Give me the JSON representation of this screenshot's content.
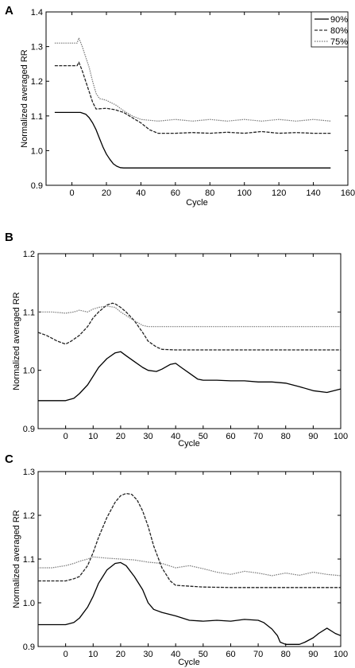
{
  "chart_data": [
    {
      "type": "line",
      "panel": "A",
      "xlabel": "Cycle",
      "ylabel": "Normalized averaged RR",
      "xlim": [
        -15,
        160
      ],
      "ylim": [
        0.9,
        1.4
      ],
      "xticks": [
        0,
        20,
        40,
        60,
        80,
        100,
        120,
        140,
        160
      ],
      "yticks": [
        0.9,
        1.0,
        1.1,
        1.2,
        1.3,
        1.4
      ],
      "yticklabels": [
        "0.9",
        "1.0",
        "1.1",
        "1.2",
        "1.3",
        "1.4"
      ],
      "legend_position": "top-right",
      "series": [
        {
          "name": "90%",
          "dash": "solid",
          "x": [
            -10,
            0,
            5,
            8,
            10,
            12,
            14,
            16,
            18,
            20,
            22,
            24,
            26,
            28,
            30,
            40,
            60,
            80,
            100,
            120,
            140,
            150
          ],
          "y": [
            1.11,
            1.11,
            1.11,
            1.105,
            1.095,
            1.08,
            1.06,
            1.035,
            1.01,
            0.99,
            0.975,
            0.962,
            0.955,
            0.951,
            0.95,
            0.95,
            0.95,
            0.95,
            0.95,
            0.95,
            0.95,
            0.95
          ]
        },
        {
          "name": "80%",
          "dash": "dash",
          "x": [
            -10,
            0,
            3,
            4,
            6,
            8,
            10,
            12,
            14,
            20,
            25,
            30,
            35,
            40,
            45,
            50,
            60,
            70,
            80,
            90,
            100,
            110,
            120,
            130,
            140,
            150
          ],
          "y": [
            1.245,
            1.245,
            1.245,
            1.255,
            1.23,
            1.2,
            1.17,
            1.14,
            1.12,
            1.122,
            1.118,
            1.11,
            1.095,
            1.08,
            1.06,
            1.05,
            1.05,
            1.052,
            1.05,
            1.053,
            1.05,
            1.055,
            1.05,
            1.052,
            1.05,
            1.05
          ]
        },
        {
          "name": "75%",
          "dash": "dot",
          "x": [
            -10,
            0,
            3,
            4,
            6,
            8,
            10,
            12,
            14,
            16,
            18,
            20,
            22,
            24,
            26,
            28,
            30,
            35,
            40,
            50,
            60,
            70,
            80,
            90,
            100,
            110,
            120,
            130,
            140,
            150
          ],
          "y": [
            1.31,
            1.31,
            1.31,
            1.325,
            1.3,
            1.27,
            1.24,
            1.2,
            1.165,
            1.15,
            1.148,
            1.145,
            1.14,
            1.135,
            1.13,
            1.122,
            1.115,
            1.1,
            1.09,
            1.085,
            1.09,
            1.085,
            1.09,
            1.085,
            1.09,
            1.085,
            1.09,
            1.085,
            1.09,
            1.085
          ]
        }
      ]
    },
    {
      "type": "line",
      "panel": "B",
      "xlabel": "Cycle",
      "ylabel": "Normalized averaged RR",
      "xlim": [
        -10,
        100
      ],
      "ylim": [
        0.9,
        1.2
      ],
      "xticks": [
        0,
        10,
        20,
        30,
        40,
        50,
        60,
        70,
        80,
        90,
        100
      ],
      "yticks": [
        0.9,
        1.0,
        1.1,
        1.2
      ],
      "yticklabels": [
        "0.9",
        "1.0",
        "1.1",
        "1.2"
      ],
      "series": [
        {
          "name": "",
          "dash": "solid",
          "x": [
            -10,
            -5,
            0,
            3,
            5,
            8,
            10,
            12,
            15,
            18,
            20,
            22,
            25,
            28,
            30,
            33,
            35,
            38,
            40,
            42,
            45,
            48,
            50,
            55,
            60,
            65,
            70,
            75,
            80,
            85,
            90,
            95,
            100
          ],
          "y": [
            0.948,
            0.948,
            0.948,
            0.952,
            0.96,
            0.975,
            0.99,
            1.005,
            1.02,
            1.03,
            1.032,
            1.025,
            1.015,
            1.005,
            1.0,
            0.998,
            1.002,
            1.01,
            1.012,
            1.005,
            0.995,
            0.985,
            0.983,
            0.983,
            0.982,
            0.982,
            0.98,
            0.98,
            0.978,
            0.972,
            0.965,
            0.962,
            0.968
          ]
        },
        {
          "name": "",
          "dash": "dash",
          "x": [
            -10,
            -7,
            -5,
            -3,
            0,
            2,
            5,
            8,
            10,
            12,
            15,
            17,
            18,
            20,
            22,
            25,
            28,
            30,
            33,
            35,
            40,
            50,
            60,
            70,
            80,
            90,
            100
          ],
          "y": [
            1.065,
            1.06,
            1.055,
            1.05,
            1.045,
            1.05,
            1.06,
            1.075,
            1.09,
            1.1,
            1.112,
            1.115,
            1.114,
            1.108,
            1.1,
            1.085,
            1.065,
            1.05,
            1.04,
            1.036,
            1.035,
            1.035,
            1.035,
            1.035,
            1.035,
            1.035,
            1.035
          ]
        },
        {
          "name": "",
          "dash": "dot",
          "x": [
            -10,
            -5,
            0,
            3,
            5,
            8,
            10,
            12,
            15,
            18,
            20,
            25,
            28,
            30,
            35,
            40,
            50,
            60,
            70,
            80,
            90,
            100
          ],
          "y": [
            1.1,
            1.1,
            1.098,
            1.1,
            1.103,
            1.1,
            1.105,
            1.108,
            1.11,
            1.108,
            1.1,
            1.085,
            1.077,
            1.075,
            1.075,
            1.075,
            1.075,
            1.075,
            1.075,
            1.075,
            1.075,
            1.075
          ]
        }
      ]
    },
    {
      "type": "line",
      "panel": "C",
      "xlabel": "Cycle",
      "ylabel": "Normalized averaged RR",
      "xlim": [
        -10,
        100
      ],
      "ylim": [
        0.9,
        1.3
      ],
      "xticks": [
        0,
        10,
        20,
        30,
        40,
        50,
        60,
        70,
        80,
        90,
        100
      ],
      "yticks": [
        0.9,
        1.0,
        1.1,
        1.2,
        1.3
      ],
      "yticklabels": [
        "0.9",
        "1.0",
        "1.1",
        "1.2",
        "1.3"
      ],
      "series": [
        {
          "name": "",
          "dash": "solid",
          "x": [
            -10,
            -5,
            0,
            3,
            5,
            8,
            10,
            12,
            15,
            18,
            20,
            22,
            25,
            28,
            30,
            32,
            35,
            40,
            45,
            50,
            55,
            60,
            65,
            70,
            72,
            75,
            77,
            78,
            80,
            85,
            87,
            90,
            92,
            95,
            98,
            100
          ],
          "y": [
            0.95,
            0.95,
            0.95,
            0.955,
            0.965,
            0.99,
            1.015,
            1.045,
            1.075,
            1.09,
            1.092,
            1.085,
            1.06,
            1.03,
            1.0,
            0.985,
            0.978,
            0.97,
            0.96,
            0.958,
            0.96,
            0.958,
            0.962,
            0.96,
            0.955,
            0.94,
            0.925,
            0.91,
            0.905,
            0.905,
            0.91,
            0.92,
            0.93,
            0.942,
            0.93,
            0.925
          ]
        },
        {
          "name": "",
          "dash": "dash",
          "x": [
            -10,
            -5,
            0,
            3,
            5,
            8,
            10,
            12,
            15,
            18,
            20,
            22,
            24,
            26,
            28,
            30,
            32,
            35,
            38,
            40,
            45,
            50,
            60,
            70,
            80,
            90,
            100
          ],
          "y": [
            1.05,
            1.05,
            1.05,
            1.055,
            1.06,
            1.085,
            1.115,
            1.15,
            1.195,
            1.23,
            1.245,
            1.25,
            1.248,
            1.235,
            1.21,
            1.175,
            1.13,
            1.08,
            1.05,
            1.04,
            1.038,
            1.036,
            1.035,
            1.035,
            1.035,
            1.035,
            1.035
          ]
        },
        {
          "name": "",
          "dash": "dot",
          "x": [
            -10,
            -5,
            0,
            3,
            5,
            8,
            10,
            15,
            20,
            25,
            30,
            35,
            40,
            45,
            50,
            55,
            60,
            65,
            70,
            75,
            80,
            85,
            90,
            95,
            100
          ],
          "y": [
            1.08,
            1.08,
            1.085,
            1.09,
            1.095,
            1.1,
            1.105,
            1.102,
            1.1,
            1.098,
            1.093,
            1.09,
            1.08,
            1.085,
            1.078,
            1.07,
            1.065,
            1.072,
            1.068,
            1.062,
            1.068,
            1.063,
            1.07,
            1.065,
            1.062
          ]
        }
      ]
    }
  ]
}
